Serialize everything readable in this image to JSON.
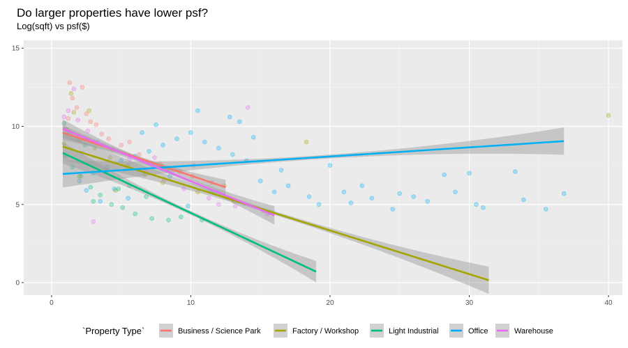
{
  "chart_data": {
    "type": "scatter",
    "title": "Do larger properties have lower psf?",
    "subtitle": "Log(sqft) vs psf($)",
    "xlabel": "",
    "ylabel": "",
    "xlim": [
      -2,
      41
    ],
    "ylim": [
      -0.8,
      15.5
    ],
    "x_ticks": [
      0,
      10,
      20,
      30,
      40
    ],
    "y_ticks": [
      0,
      5,
      10,
      15
    ],
    "grid": true,
    "legend_title": "`Property Type`",
    "legend_position": "bottom",
    "series": [
      {
        "name": "Business / Science Park",
        "color": "#F8766D",
        "fit": {
          "x0": 0.8,
          "y0": 9.6,
          "x1": 12.5,
          "y1": 6.1
        },
        "points": [
          [
            1.2,
            10.5
          ],
          [
            1.8,
            11.2
          ],
          [
            2.5,
            10.8
          ],
          [
            3.2,
            10.1
          ],
          [
            1.0,
            9.8
          ],
          [
            4.1,
            9.2
          ],
          [
            5.0,
            8.8
          ],
          [
            6.3,
            8.2
          ],
          [
            7.8,
            7.6
          ],
          [
            9.2,
            7.1
          ],
          [
            11.5,
            6.4
          ],
          [
            2.2,
            12.5
          ],
          [
            1.5,
            11.8
          ],
          [
            3.6,
            9.5
          ],
          [
            2.8,
            10.3
          ],
          [
            5.6,
            9.0
          ],
          [
            8.3,
            7.3
          ],
          [
            10.1,
            6.8
          ],
          [
            1.3,
            12.8
          ],
          [
            2.0,
            9.1
          ]
        ]
      },
      {
        "name": "Factory / Workshop",
        "color": "#A3A500",
        "fit": {
          "x0": 0.8,
          "y0": 8.7,
          "x1": 31.4,
          "y1": 0.15
        },
        "points": [
          [
            1.1,
            9.8
          ],
          [
            1.6,
            10.9
          ],
          [
            2.4,
            9.2
          ],
          [
            3.1,
            8.6
          ],
          [
            4.2,
            8.0
          ],
          [
            5.5,
            7.5
          ],
          [
            6.7,
            6.9
          ],
          [
            8.0,
            6.4
          ],
          [
            10.5,
            5.8
          ],
          [
            13.1,
            5.2
          ],
          [
            15.2,
            4.6
          ],
          [
            18.3,
            9.0
          ],
          [
            40.0,
            10.7
          ],
          [
            1.4,
            12.1
          ],
          [
            2.7,
            11.0
          ],
          [
            3.8,
            7.2
          ],
          [
            0.9,
            8.9
          ],
          [
            2.0,
            6.8
          ],
          [
            4.6,
            5.9
          ],
          [
            12.4,
            6.2
          ]
        ]
      },
      {
        "name": "Light Industrial",
        "color": "#00BF7D",
        "fit": {
          "x0": 0.8,
          "y0": 8.3,
          "x1": 19.0,
          "y1": 0.7
        },
        "points": [
          [
            1.0,
            8.1
          ],
          [
            1.5,
            7.4
          ],
          [
            2.1,
            6.8
          ],
          [
            2.8,
            6.1
          ],
          [
            3.5,
            5.6
          ],
          [
            4.3,
            5.0
          ],
          [
            5.1,
            4.8
          ],
          [
            6.0,
            4.4
          ],
          [
            7.2,
            4.1
          ],
          [
            8.4,
            4.0
          ],
          [
            9.3,
            4.2
          ],
          [
            10.8,
            4.0
          ],
          [
            1.3,
            9.6
          ],
          [
            2.4,
            8.8
          ],
          [
            3.9,
            7.1
          ],
          [
            5.6,
            6.2
          ],
          [
            0.9,
            10.2
          ],
          [
            3.0,
            5.2
          ],
          [
            4.8,
            6.0
          ],
          [
            6.8,
            5.5
          ]
        ]
      },
      {
        "name": "Office",
        "color": "#00B0F6",
        "fit": {
          "x0": 0.8,
          "y0": 6.95,
          "x1": 36.8,
          "y1": 9.05
        },
        "points": [
          [
            2.0,
            6.5
          ],
          [
            3.0,
            7.0
          ],
          [
            4.0,
            7.4
          ],
          [
            5.0,
            7.8
          ],
          [
            6.0,
            8.1
          ],
          [
            7.0,
            8.4
          ],
          [
            8.0,
            8.8
          ],
          [
            9.0,
            9.2
          ],
          [
            10.0,
            9.6
          ],
          [
            11.0,
            9.0
          ],
          [
            12.0,
            8.6
          ],
          [
            13.0,
            8.2
          ],
          [
            14.0,
            7.8
          ],
          [
            15.0,
            6.5
          ],
          [
            16.0,
            5.8
          ],
          [
            17.0,
            6.2
          ],
          [
            18.5,
            5.5
          ],
          [
            20.0,
            7.5
          ],
          [
            21.5,
            5.1
          ],
          [
            23.0,
            5.4
          ],
          [
            25.0,
            5.7
          ],
          [
            27.0,
            5.2
          ],
          [
            29.0,
            5.8
          ],
          [
            30.0,
            7.0
          ],
          [
            33.3,
            7.1
          ],
          [
            33.9,
            5.3
          ],
          [
            36.8,
            5.7
          ],
          [
            28.2,
            6.9
          ],
          [
            24.5,
            4.7
          ],
          [
            22.3,
            6.2
          ],
          [
            19.2,
            5.0
          ],
          [
            10.5,
            11.0
          ],
          [
            12.8,
            10.6
          ],
          [
            6.5,
            9.6
          ],
          [
            4.5,
            6.0
          ],
          [
            3.5,
            5.2
          ],
          [
            8.5,
            6.8
          ],
          [
            11.5,
            5.8
          ],
          [
            14.5,
            9.3
          ],
          [
            16.5,
            7.2
          ],
          [
            7.5,
            10.1
          ],
          [
            9.8,
            4.9
          ],
          [
            5.5,
            5.4
          ],
          [
            2.5,
            5.9
          ],
          [
            13.5,
            10.3
          ],
          [
            30.5,
            5.0
          ],
          [
            26.0,
            5.5
          ],
          [
            31.0,
            4.8
          ],
          [
            35.5,
            4.7
          ],
          [
            21.0,
            5.8
          ]
        ]
      },
      {
        "name": "Warehouse",
        "color": "#E76BF3",
        "fit": {
          "x0": 0.8,
          "y0": 9.85,
          "x1": 16.0,
          "y1": 4.3
        },
        "points": [
          [
            1.2,
            11.0
          ],
          [
            1.9,
            10.4
          ],
          [
            2.6,
            9.7
          ],
          [
            3.3,
            9.0
          ],
          [
            4.4,
            8.5
          ],
          [
            5.6,
            7.9
          ],
          [
            6.8,
            7.2
          ],
          [
            8.1,
            6.6
          ],
          [
            9.5,
            6.0
          ],
          [
            11.3,
            5.4
          ],
          [
            13.2,
            4.9
          ],
          [
            14.1,
            11.2
          ],
          [
            1.6,
            12.4
          ],
          [
            3.0,
            3.9
          ],
          [
            2.2,
            8.3
          ],
          [
            7.4,
            8.0
          ],
          [
            10.2,
            7.5
          ],
          [
            12.0,
            5.0
          ],
          [
            15.5,
            4.4
          ],
          [
            0.9,
            10.6
          ]
        ]
      }
    ]
  }
}
